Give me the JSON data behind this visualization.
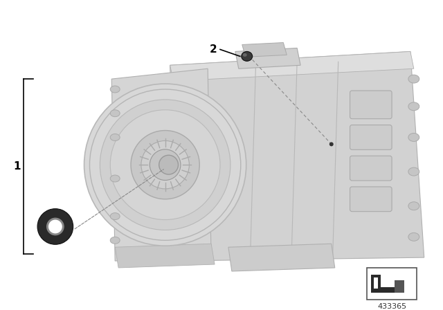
{
  "background_color": "#ffffff",
  "diagram_number": "433365",
  "trans_body_color": "#d4d4d4",
  "trans_edge_color": "#b0b0b0",
  "trans_shadow_color": "#c0c0c0",
  "seal_dark": "#2a2a2a",
  "seal_mid": "#888888",
  "seal_light": "#e8e8e8",
  "plug_dark": "#3a3a3a",
  "line_color": "#000000",
  "dash_color": "#888888",
  "label_fontsize": 11,
  "number_fontsize": 8,
  "bracket_lw": 1.2
}
